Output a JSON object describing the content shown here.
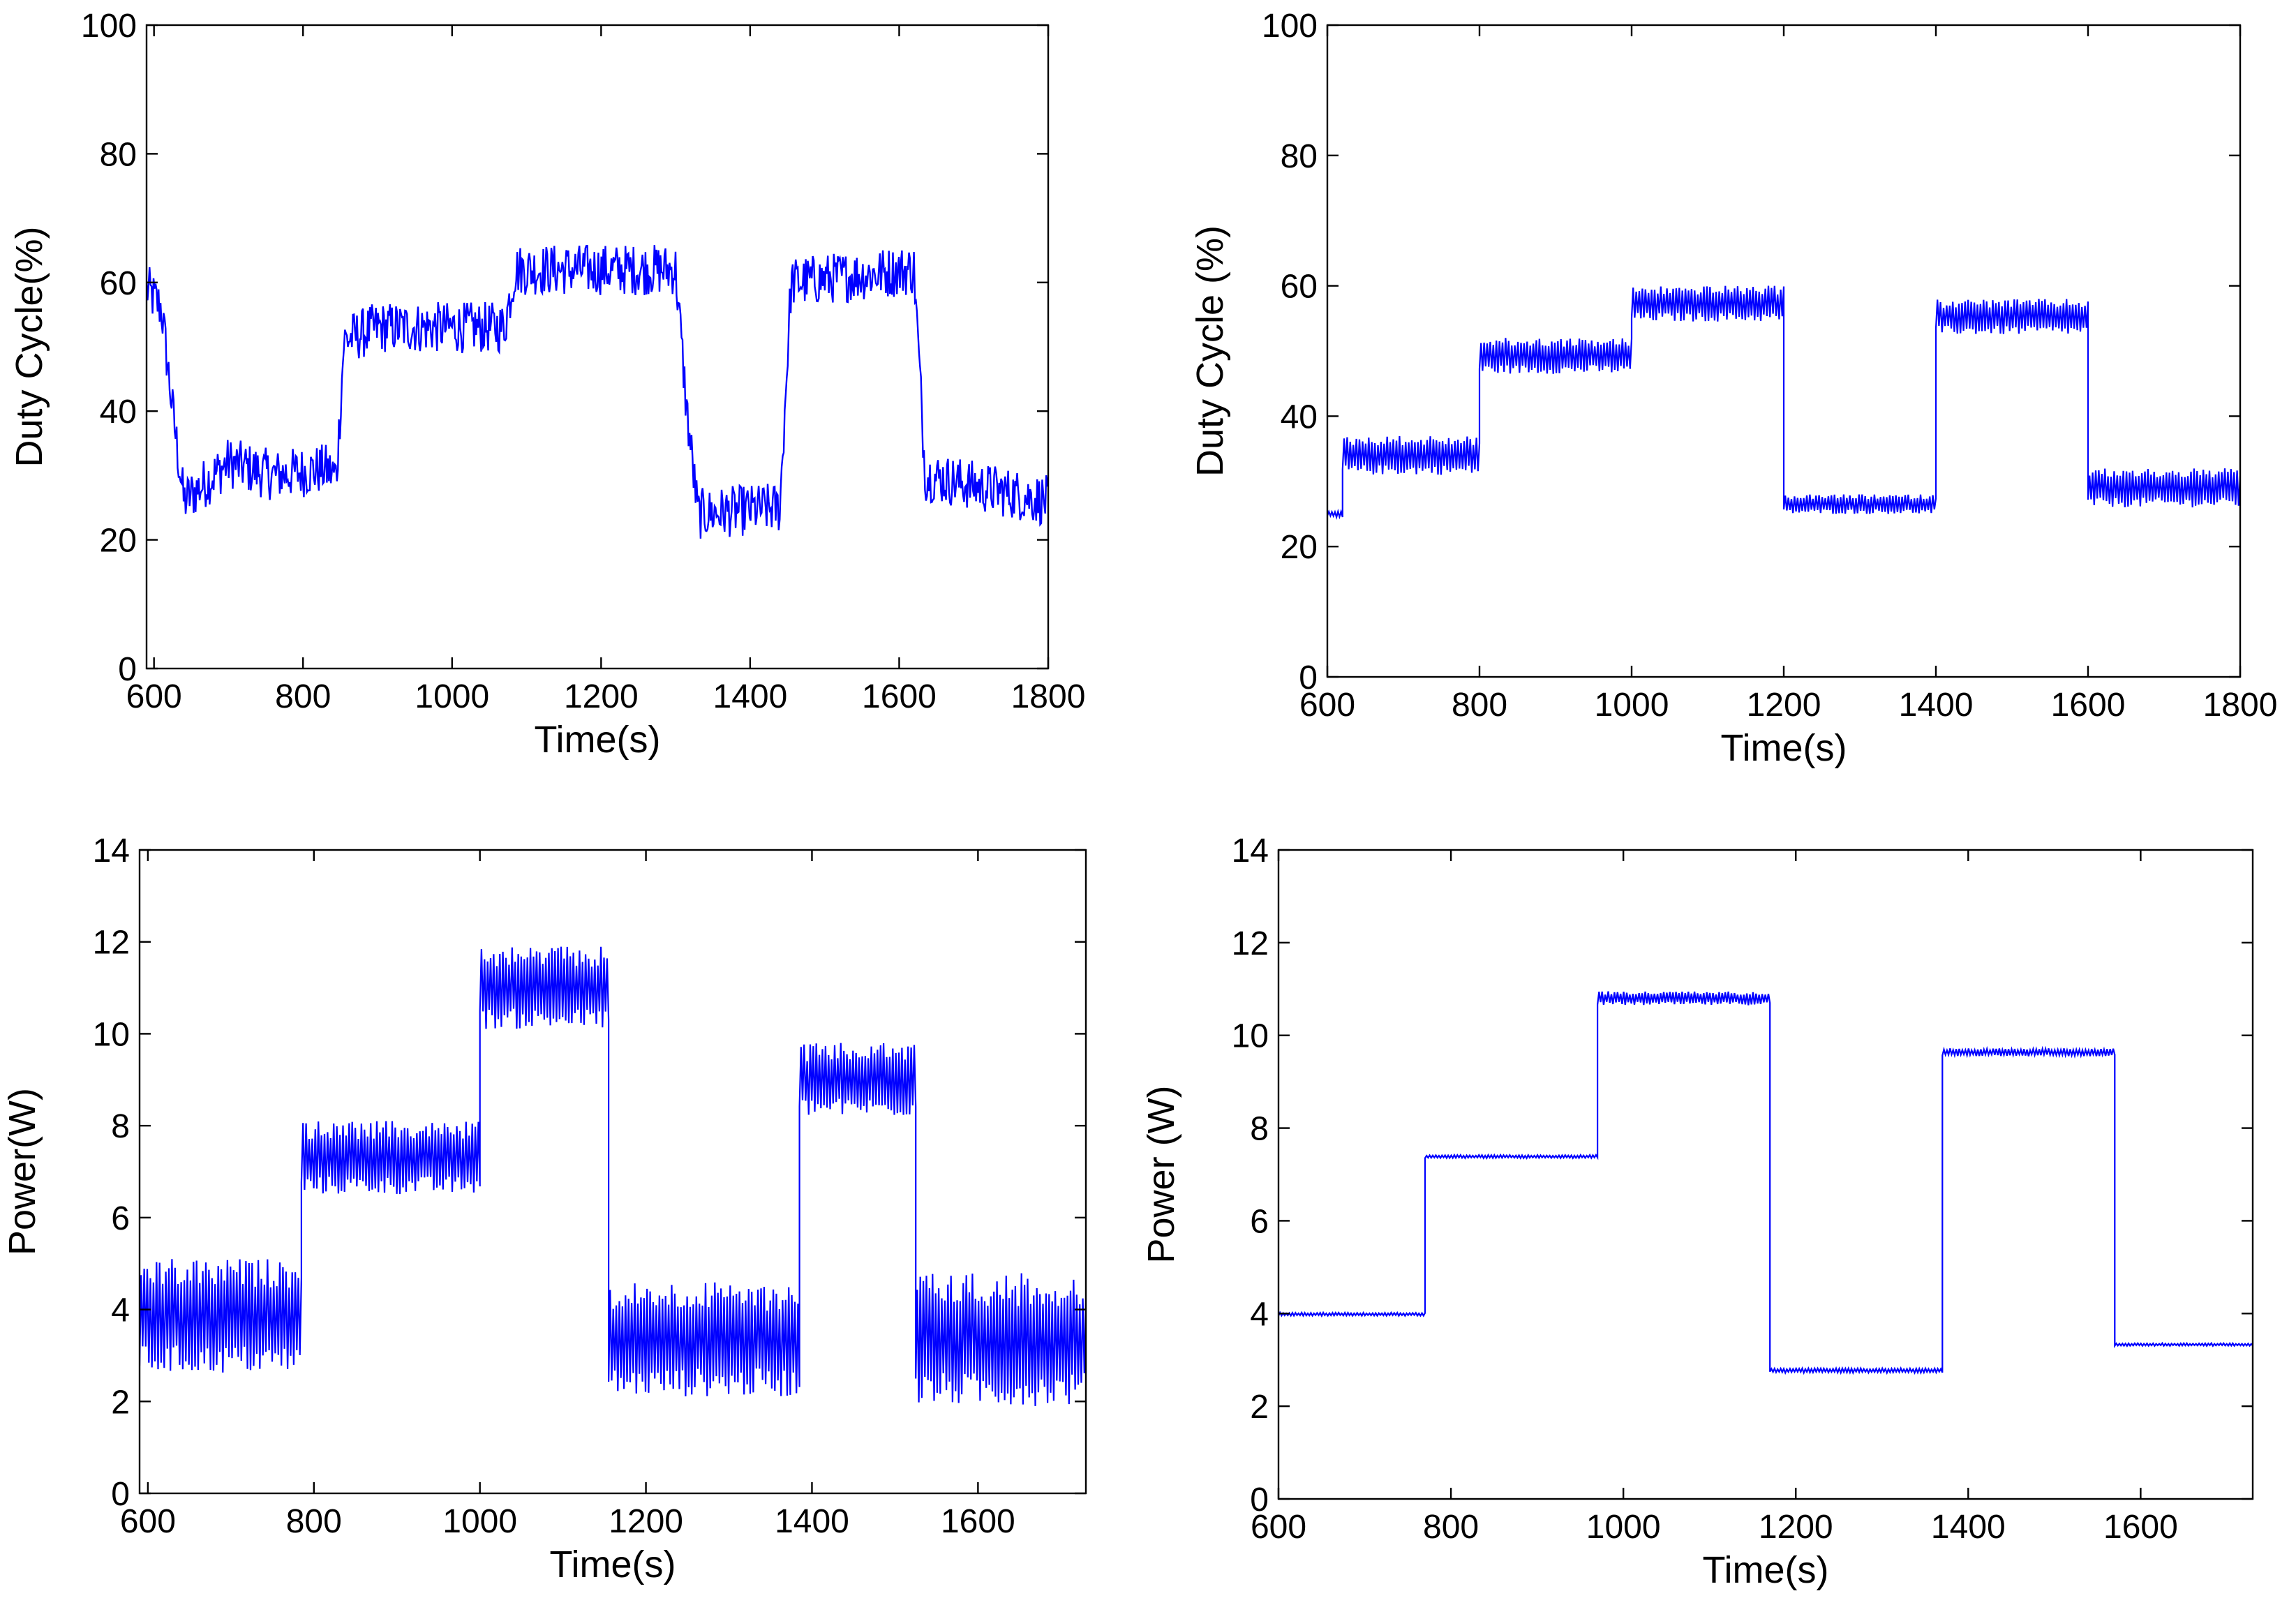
{
  "colors": {
    "series": "#0000ff",
    "axis": "#000000",
    "background": "#ffffff"
  },
  "chart_data": [
    {
      "type": "line",
      "panel": "top-left",
      "xlabel": "Time(s)",
      "ylabel": "Duty Cycle(%)",
      "xlim": [
        590,
        1800
      ],
      "ylim": [
        0,
        100
      ],
      "xticks": [
        600,
        800,
        1000,
        1200,
        1400,
        1600,
        1800
      ],
      "yticks": [
        0,
        20,
        40,
        60,
        80,
        100
      ],
      "grid": false,
      "series": [
        {
          "name": "Duty Cycle",
          "noise": 4,
          "segments": [
            {
              "t": 590,
              "v": 59
            },
            {
              "t": 610,
              "v": 56
            },
            {
              "t": 625,
              "v": 40
            },
            {
              "t": 640,
              "v": 26
            },
            {
              "t": 700,
              "v": 32
            },
            {
              "t": 760,
              "v": 30
            },
            {
              "t": 830,
              "v": 31
            },
            {
              "t": 845,
              "v": 30
            },
            {
              "t": 855,
              "v": 51
            },
            {
              "t": 900,
              "v": 53
            },
            {
              "t": 1000,
              "v": 53
            },
            {
              "t": 1070,
              "v": 53
            },
            {
              "t": 1085,
              "v": 62
            },
            {
              "t": 1300,
              "v": 62
            },
            {
              "t": 1315,
              "v": 40
            },
            {
              "t": 1330,
              "v": 24
            },
            {
              "t": 1440,
              "v": 25
            },
            {
              "t": 1455,
              "v": 60
            },
            {
              "t": 1620,
              "v": 62
            },
            {
              "t": 1635,
              "v": 30
            },
            {
              "t": 1800,
              "v": 26
            }
          ]
        }
      ]
    },
    {
      "type": "line",
      "panel": "top-right",
      "xlabel": "Time(s)",
      "ylabel": "Duty Cycle (%)",
      "xlim": [
        600,
        1800
      ],
      "ylim": [
        0,
        100
      ],
      "xticks": [
        600,
        800,
        1000,
        1200,
        1400,
        1600,
        1800
      ],
      "yticks": [
        0,
        20,
        40,
        60,
        80,
        100
      ],
      "grid": false,
      "series": [
        {
          "name": "Duty Cycle",
          "bands": [
            {
              "t0": 600,
              "t1": 620,
              "lo": 24.5,
              "hi": 25.5
            },
            {
              "t0": 620,
              "t1": 800,
              "lo": 31,
              "hi": 37
            },
            {
              "t0": 800,
              "t1": 1000,
              "lo": 46.5,
              "hi": 52
            },
            {
              "t0": 1000,
              "t1": 1200,
              "lo": 54.5,
              "hi": 60
            },
            {
              "t0": 1200,
              "t1": 1400,
              "lo": 25,
              "hi": 28
            },
            {
              "t0": 1400,
              "t1": 1600,
              "lo": 52.5,
              "hi": 58
            },
            {
              "t0": 1600,
              "t1": 1800,
              "lo": 26,
              "hi": 32
            }
          ]
        }
      ]
    },
    {
      "type": "line",
      "panel": "bottom-left",
      "xlabel": "Time(s)",
      "ylabel": "Power(W)",
      "xlim": [
        590,
        1730
      ],
      "ylim": [
        0,
        14
      ],
      "xticks": [
        600,
        800,
        1000,
        1200,
        1400,
        1600
      ],
      "yticks": [
        0,
        2,
        4,
        6,
        8,
        10,
        12,
        14
      ],
      "grid": false,
      "series": [
        {
          "name": "Power",
          "bands": [
            {
              "t0": 590,
              "t1": 785,
              "lo": 2.6,
              "hi": 5.1
            },
            {
              "t0": 785,
              "t1": 1000,
              "lo": 6.5,
              "hi": 8.1
            },
            {
              "t0": 1000,
              "t1": 1155,
              "lo": 10.1,
              "hi": 11.9
            },
            {
              "t0": 1155,
              "t1": 1385,
              "lo": 2.1,
              "hi": 4.6
            },
            {
              "t0": 1385,
              "t1": 1525,
              "lo": 8.2,
              "hi": 9.8
            },
            {
              "t0": 1525,
              "t1": 1730,
              "lo": 1.9,
              "hi": 4.8
            }
          ]
        }
      ]
    },
    {
      "type": "line",
      "panel": "bottom-right",
      "xlabel": "Time(s)",
      "ylabel": "Power (W)",
      "xlim": [
        600,
        1730
      ],
      "ylim": [
        0,
        14
      ],
      "xticks": [
        600,
        800,
        1000,
        1200,
        1400,
        1600
      ],
      "yticks": [
        0,
        2,
        4,
        6,
        8,
        10,
        12,
        14
      ],
      "grid": false,
      "series": [
        {
          "name": "Power",
          "bands": [
            {
              "t0": 600,
              "t1": 770,
              "lo": 3.95,
              "hi": 4.02
            },
            {
              "t0": 770,
              "t1": 970,
              "lo": 7.35,
              "hi": 7.42
            },
            {
              "t0": 970,
              "t1": 1170,
              "lo": 10.65,
              "hi": 10.95
            },
            {
              "t0": 1170,
              "t1": 1370,
              "lo": 2.72,
              "hi": 2.82
            },
            {
              "t0": 1370,
              "t1": 1570,
              "lo": 9.55,
              "hi": 9.72
            },
            {
              "t0": 1570,
              "t1": 1730,
              "lo": 3.3,
              "hi": 3.36
            }
          ]
        }
      ]
    }
  ]
}
